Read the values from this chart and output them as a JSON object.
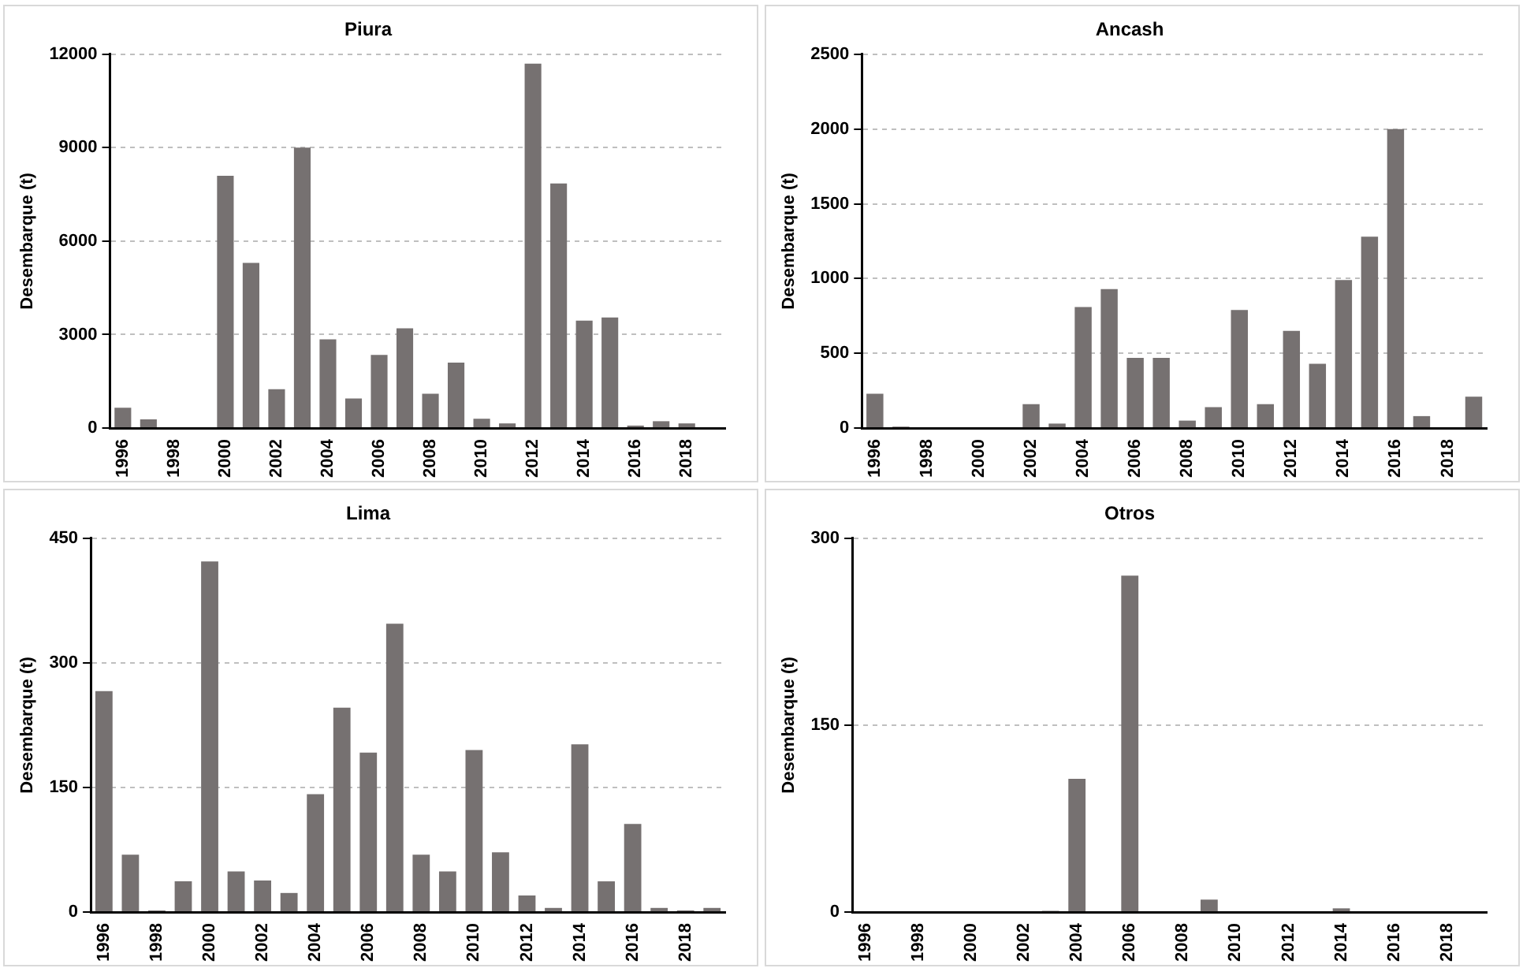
{
  "chart_data": [
    {
      "type": "bar",
      "title": "Piura",
      "ylabel": "Desembarque (t)",
      "categories": [
        "1996",
        null,
        "1998",
        null,
        "2000",
        null,
        "2002",
        null,
        "2004",
        null,
        "2006",
        null,
        "2008",
        null,
        "2010",
        null,
        "2012",
        null,
        "2014",
        null,
        "2016",
        null,
        "2018",
        null
      ],
      "values": [
        650,
        280,
        0,
        0,
        8100,
        5300,
        1250,
        9000,
        2850,
        950,
        2350,
        3200,
        1100,
        2100,
        300,
        150,
        11700,
        7850,
        3450,
        3550,
        80,
        220,
        150,
        0
      ],
      "color": "#767171",
      "ylim": [
        0,
        12000
      ],
      "yticks": [
        0,
        3000,
        6000,
        9000,
        12000
      ],
      "grid": "y"
    },
    {
      "type": "bar",
      "title": "Ancash",
      "ylabel": "Desembarque (t)",
      "categories": [
        "1996",
        null,
        "1998",
        null,
        "2000",
        null,
        "2002",
        null,
        "2004",
        null,
        "2006",
        null,
        "2008",
        null,
        "2010",
        null,
        "2012",
        null,
        "2014",
        null,
        "2016",
        null,
        "2018",
        null
      ],
      "values": [
        230,
        10,
        0,
        0,
        0,
        0,
        160,
        30,
        810,
        930,
        470,
        470,
        50,
        140,
        790,
        160,
        650,
        430,
        990,
        1280,
        2000,
        80,
        0,
        210
      ],
      "color": "#767171",
      "ylim": [
        0,
        2500
      ],
      "yticks": [
        0,
        500,
        1000,
        1500,
        2000,
        2500
      ],
      "grid": "y"
    },
    {
      "type": "bar",
      "title": "Lima",
      "ylabel": "Desembarque (t)",
      "categories": [
        "1996",
        null,
        "1998",
        null,
        "2000",
        null,
        "2002",
        null,
        "2004",
        null,
        "2006",
        null,
        "2008",
        null,
        "2010",
        null,
        "2012",
        null,
        "2014",
        null,
        "2016",
        null,
        "2018",
        null
      ],
      "values": [
        266,
        69,
        2,
        37,
        422,
        49,
        38,
        23,
        142,
        246,
        192,
        347,
        69,
        49,
        195,
        72,
        20,
        5,
        202,
        37,
        106,
        5,
        2,
        5
      ],
      "color": "#767171",
      "ylim": [
        0,
        450
      ],
      "yticks": [
        0,
        150,
        300,
        450
      ],
      "grid": "y"
    },
    {
      "type": "bar",
      "title": "Otros",
      "ylabel": "Desembarque (t)",
      "categories": [
        "1996",
        null,
        "1998",
        null,
        "2000",
        null,
        "2002",
        null,
        "2004",
        null,
        "2006",
        null,
        "2008",
        null,
        "2010",
        null,
        "2012",
        null,
        "2014",
        null,
        "2016",
        null,
        "2018",
        null
      ],
      "values": [
        0,
        0,
        0,
        0,
        0,
        0,
        0,
        1,
        107,
        0,
        270,
        0,
        0,
        10,
        0,
        0,
        0,
        0,
        3,
        0,
        0,
        0,
        0,
        0
      ],
      "color": "#767171",
      "ylim": [
        0,
        300
      ],
      "yticks": [
        0,
        150,
        300
      ],
      "grid": "y"
    }
  ]
}
